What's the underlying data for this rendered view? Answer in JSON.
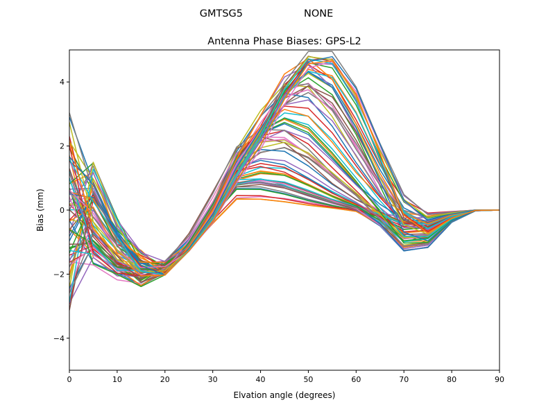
{
  "chart_data": {
    "type": "line",
    "suptitle_left": "GMTSG5",
    "suptitle_right": "NONE",
    "title": "Antenna Phase Biases: GPS-L2",
    "xlabel": "Elvation angle (degrees)",
    "ylabel": "Bias (mm)",
    "xlim": [
      0,
      90
    ],
    "ylim": [
      -5,
      5
    ],
    "xticks": [
      0,
      10,
      20,
      30,
      40,
      50,
      60,
      70,
      80,
      90
    ],
    "yticks": [
      -4,
      -2,
      0,
      2,
      4
    ],
    "xtick_labels": [
      "0",
      "10",
      "20",
      "30",
      "40",
      "50",
      "60",
      "70",
      "80",
      "90"
    ],
    "ytick_labels": [
      "−4",
      "−2",
      "0",
      "2",
      "4"
    ],
    "grid": false,
    "legend": "none",
    "x": [
      0,
      5,
      10,
      15,
      20,
      25,
      30,
      35,
      40,
      45,
      50,
      55,
      60,
      65,
      70,
      75,
      80,
      85,
      90
    ],
    "series_count": 72,
    "series_generator": {
      "description": "Family of elevation-dependent phase-bias curves (one per azimuth) estimated from the figure; values in mm.",
      "low_elev_amplitude": [
        0.6,
        3.6
      ],
      "mid_peak_range": [
        0.6,
        4.9
      ],
      "high_elev_trough_range": [
        -1.45,
        -0.25
      ],
      "end_value": 0
    },
    "colors": [
      "#1f77b4",
      "#ff7f0e",
      "#2ca02c",
      "#d62728",
      "#9467bd",
      "#8c564b",
      "#e377c2",
      "#7f7f7f",
      "#bcbd22",
      "#17becf"
    ]
  }
}
